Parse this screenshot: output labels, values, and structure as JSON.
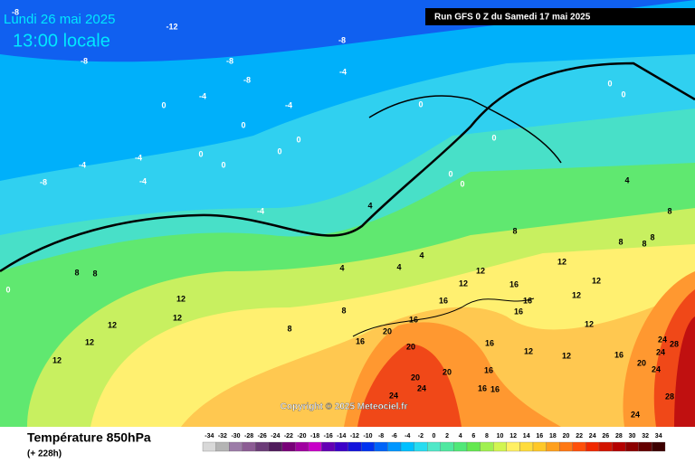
{
  "header": {
    "date": "Lundi 26 mai 2025",
    "time": "13:00 locale",
    "run": "Run GFS 0 Z du Samedi 17 mai 2025"
  },
  "map": {
    "contour_labels": [
      -12,
      -8,
      -8,
      -8,
      -8,
      -4,
      -4,
      -4,
      0,
      0,
      0,
      0,
      0,
      0,
      -4,
      -4,
      -8,
      -4,
      -4,
      0,
      0,
      0,
      0,
      0,
      0,
      4,
      4,
      4,
      4,
      4,
      8,
      8,
      8,
      8,
      8,
      8,
      8,
      8,
      8,
      12,
      12,
      12,
      12,
      12,
      12,
      12,
      12,
      12,
      12,
      12,
      12,
      12,
      16,
      16,
      16,
      16,
      16,
      16,
      16,
      16,
      16,
      16,
      16,
      20,
      20,
      20,
      20,
      20,
      24,
      24,
      24,
      24,
      24,
      24,
      28,
      28,
      0,
      -8
    ]
  },
  "copyright": "Copyright © 2025 Meteociel.fr",
  "footer": {
    "title": "Température 850hPa",
    "lead": "(+ 228h)"
  },
  "legend": {
    "values": [
      -34,
      -32,
      -30,
      -28,
      -26,
      -24,
      -22,
      -20,
      -18,
      -16,
      -14,
      -12,
      -10,
      -8,
      -6,
      -4,
      -2,
      0,
      2,
      4,
      6,
      8,
      10,
      12,
      14,
      16,
      18,
      20,
      22,
      24,
      26,
      28,
      30,
      32,
      34
    ],
    "colors": [
      "#d8d8d8",
      "#b4b4b4",
      "#9c7ca8",
      "#8c5c94",
      "#6c3c78",
      "#501c5c",
      "#780078",
      "#a000a0",
      "#c800c8",
      "#6400b4",
      "#3c00c8",
      "#1414dc",
      "#0032f0",
      "#0064f8",
      "#0096ff",
      "#00c0ff",
      "#28dcf0",
      "#50e8c8",
      "#50e8a0",
      "#50e878",
      "#64e850",
      "#a0f050",
      "#d2f550",
      "#fff064",
      "#ffdc3c",
      "#ffc828",
      "#ffa01e",
      "#ff7814",
      "#ff500a",
      "#f02800",
      "#d21400",
      "#b40000",
      "#8c0000",
      "#640000",
      "#3c0000"
    ]
  }
}
